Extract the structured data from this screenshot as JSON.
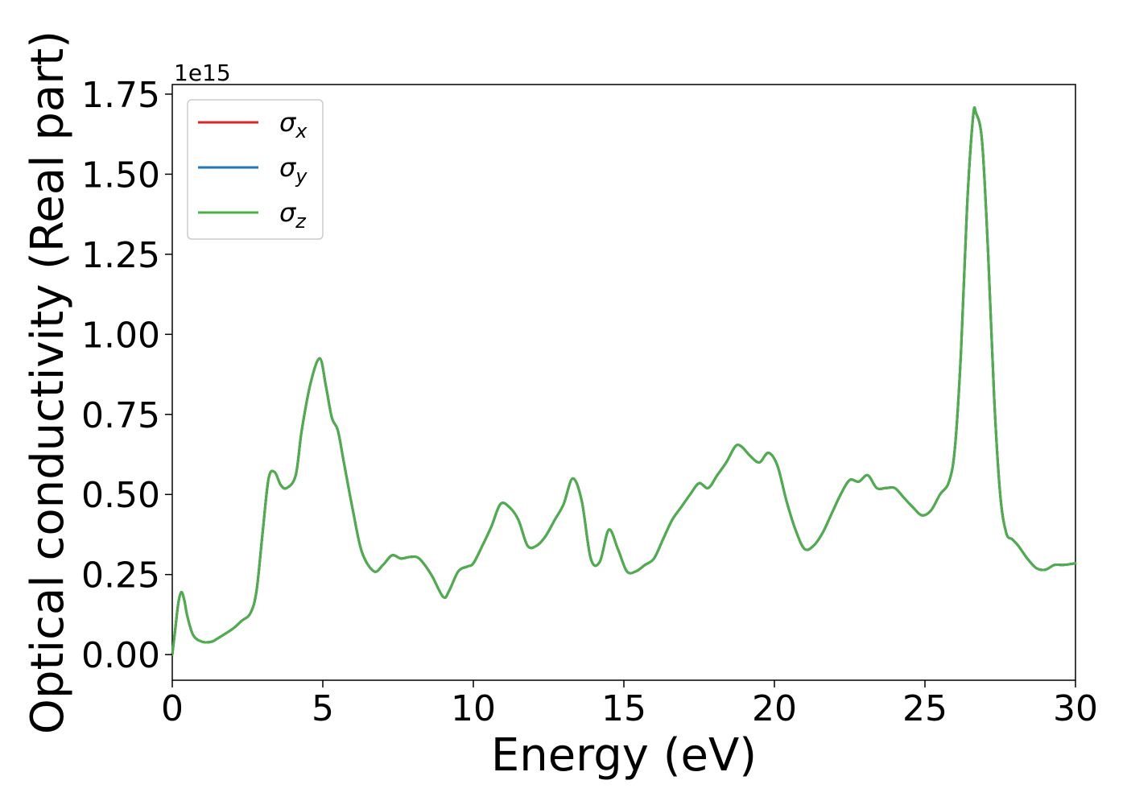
{
  "chart_data": {
    "type": "line",
    "xlabel": "Energy (eV)",
    "ylabel": "Optical conductivity (Real part)",
    "y_offset_text": "1e15",
    "xlim": [
      0,
      30
    ],
    "ylim": [
      -0.08,
      1.78
    ],
    "x_ticks": [
      0,
      5,
      10,
      15,
      20,
      25,
      30
    ],
    "x_tick_labels": [
      "0",
      "5",
      "10",
      "15",
      "20",
      "25",
      "30"
    ],
    "y_ticks": [
      0.0,
      0.25,
      0.5,
      0.75,
      1.0,
      1.25,
      1.5,
      1.75
    ],
    "y_tick_labels": [
      "0.00",
      "0.25",
      "0.50",
      "0.75",
      "1.00",
      "1.25",
      "1.50",
      "1.75"
    ],
    "grid": false,
    "legend_position": "top-left",
    "x": [
      0,
      0.1,
      0.2,
      0.3,
      0.4,
      0.5,
      0.7,
      1.0,
      1.3,
      1.5,
      2.0,
      2.3,
      2.6,
      2.8,
      3.0,
      3.2,
      3.4,
      3.6,
      3.8,
      4.1,
      4.3,
      4.6,
      4.9,
      5.1,
      5.3,
      5.5,
      5.7,
      6.0,
      6.3,
      6.7,
      7.0,
      7.3,
      7.6,
      7.9,
      8.2,
      8.6,
      9.0,
      9.2,
      9.5,
      9.8,
      10.0,
      10.3,
      10.6,
      10.9,
      11.2,
      11.5,
      11.8,
      12.1,
      12.4,
      12.7,
      13.0,
      13.3,
      13.6,
      13.9,
      14.2,
      14.5,
      14.8,
      15.1,
      15.4,
      15.7,
      16.0,
      16.3,
      16.6,
      16.9,
      17.2,
      17.5,
      17.8,
      18.1,
      18.4,
      18.7,
      18.9,
      19.2,
      19.5,
      19.8,
      20.1,
      20.4,
      20.7,
      21.0,
      21.3,
      21.6,
      21.9,
      22.2,
      22.5,
      22.8,
      23.1,
      23.4,
      23.7,
      24.0,
      24.3,
      24.6,
      24.9,
      25.2,
      25.5,
      25.8,
      26.0,
      26.2,
      26.4,
      26.6,
      26.7,
      26.9,
      27.1,
      27.3,
      27.5,
      27.7,
      27.9,
      28.1,
      28.4,
      28.7,
      29.0,
      29.3,
      29.6,
      30.0
    ],
    "series": [
      {
        "name": "σx",
        "color": "#d62728",
        "y": [
          0.0,
          0.08,
          0.16,
          0.195,
          0.17,
          0.12,
          0.06,
          0.04,
          0.04,
          0.05,
          0.08,
          0.105,
          0.13,
          0.2,
          0.38,
          0.55,
          0.57,
          0.53,
          0.52,
          0.56,
          0.7,
          0.85,
          0.925,
          0.84,
          0.74,
          0.7,
          0.6,
          0.45,
          0.32,
          0.26,
          0.28,
          0.31,
          0.3,
          0.305,
          0.3,
          0.25,
          0.18,
          0.2,
          0.26,
          0.275,
          0.285,
          0.34,
          0.4,
          0.47,
          0.46,
          0.42,
          0.34,
          0.34,
          0.37,
          0.42,
          0.47,
          0.55,
          0.48,
          0.3,
          0.29,
          0.39,
          0.33,
          0.26,
          0.26,
          0.28,
          0.3,
          0.36,
          0.42,
          0.46,
          0.5,
          0.535,
          0.52,
          0.56,
          0.6,
          0.65,
          0.65,
          0.62,
          0.6,
          0.63,
          0.59,
          0.48,
          0.39,
          0.33,
          0.34,
          0.38,
          0.44,
          0.5,
          0.545,
          0.54,
          0.56,
          0.52,
          0.52,
          0.52,
          0.49,
          0.46,
          0.435,
          0.45,
          0.5,
          0.54,
          0.65,
          0.95,
          1.4,
          1.68,
          1.69,
          1.6,
          1.25,
          0.8,
          0.5,
          0.38,
          0.36,
          0.34,
          0.3,
          0.27,
          0.265,
          0.28,
          0.28,
          0.285
        ]
      },
      {
        "name": "σy",
        "color": "#1f77b4",
        "y": [
          0.0,
          0.08,
          0.16,
          0.195,
          0.17,
          0.12,
          0.06,
          0.04,
          0.04,
          0.05,
          0.08,
          0.105,
          0.13,
          0.2,
          0.38,
          0.55,
          0.57,
          0.53,
          0.52,
          0.56,
          0.7,
          0.85,
          0.925,
          0.84,
          0.74,
          0.7,
          0.6,
          0.45,
          0.32,
          0.26,
          0.28,
          0.31,
          0.3,
          0.305,
          0.3,
          0.25,
          0.18,
          0.2,
          0.26,
          0.275,
          0.285,
          0.34,
          0.4,
          0.47,
          0.46,
          0.42,
          0.34,
          0.34,
          0.37,
          0.42,
          0.47,
          0.55,
          0.48,
          0.3,
          0.29,
          0.39,
          0.33,
          0.26,
          0.26,
          0.28,
          0.3,
          0.36,
          0.42,
          0.46,
          0.5,
          0.535,
          0.52,
          0.56,
          0.6,
          0.65,
          0.65,
          0.62,
          0.6,
          0.63,
          0.59,
          0.48,
          0.39,
          0.33,
          0.34,
          0.38,
          0.44,
          0.5,
          0.545,
          0.54,
          0.56,
          0.52,
          0.52,
          0.52,
          0.49,
          0.46,
          0.435,
          0.45,
          0.5,
          0.54,
          0.65,
          0.95,
          1.4,
          1.68,
          1.69,
          1.6,
          1.25,
          0.8,
          0.5,
          0.38,
          0.36,
          0.34,
          0.3,
          0.27,
          0.265,
          0.28,
          0.28,
          0.285
        ]
      },
      {
        "name": "σz",
        "color": "#4daf4a",
        "y": [
          0.0,
          0.08,
          0.16,
          0.195,
          0.17,
          0.12,
          0.06,
          0.04,
          0.04,
          0.05,
          0.08,
          0.105,
          0.13,
          0.2,
          0.38,
          0.55,
          0.57,
          0.53,
          0.52,
          0.56,
          0.7,
          0.85,
          0.925,
          0.84,
          0.74,
          0.7,
          0.6,
          0.45,
          0.32,
          0.26,
          0.28,
          0.31,
          0.3,
          0.305,
          0.3,
          0.25,
          0.18,
          0.2,
          0.26,
          0.275,
          0.285,
          0.34,
          0.4,
          0.47,
          0.46,
          0.42,
          0.34,
          0.34,
          0.37,
          0.42,
          0.47,
          0.55,
          0.48,
          0.3,
          0.29,
          0.39,
          0.33,
          0.26,
          0.26,
          0.28,
          0.3,
          0.36,
          0.42,
          0.46,
          0.5,
          0.535,
          0.52,
          0.56,
          0.6,
          0.65,
          0.65,
          0.62,
          0.6,
          0.63,
          0.59,
          0.48,
          0.39,
          0.33,
          0.34,
          0.38,
          0.44,
          0.5,
          0.545,
          0.54,
          0.56,
          0.52,
          0.52,
          0.52,
          0.49,
          0.46,
          0.435,
          0.45,
          0.5,
          0.54,
          0.65,
          0.95,
          1.4,
          1.68,
          1.69,
          1.6,
          1.25,
          0.8,
          0.5,
          0.38,
          0.36,
          0.34,
          0.3,
          0.27,
          0.265,
          0.28,
          0.28,
          0.285
        ]
      }
    ],
    "legend": [
      {
        "symbol": "σ",
        "subscript": "x"
      },
      {
        "symbol": "σ",
        "subscript": "y"
      },
      {
        "symbol": "σ",
        "subscript": "z"
      }
    ]
  }
}
